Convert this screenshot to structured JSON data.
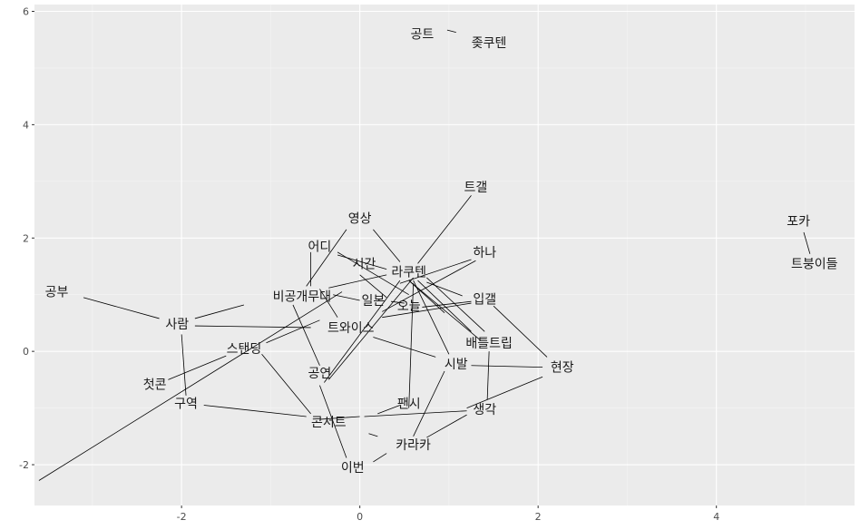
{
  "chart_data": {
    "type": "network",
    "title": "",
    "xlabel": "",
    "ylabel": "",
    "xlim": [
      -3.65,
      5.55
    ],
    "ylim": [
      -2.72,
      6.12
    ],
    "x_ticks": [
      -2,
      0,
      2,
      4
    ],
    "y_ticks": [
      -2,
      0,
      2,
      4,
      6
    ],
    "grid": true,
    "legend": "none",
    "nodes": [
      {
        "id": "gongteu",
        "label": "공트",
        "x": 0.7,
        "y": 5.6
      },
      {
        "id": "jotkuten",
        "label": "좆쿠텐",
        "x": 1.45,
        "y": 5.45
      },
      {
        "id": "teugael",
        "label": "트갤",
        "x": 1.3,
        "y": 2.9
      },
      {
        "id": "yeongsang",
        "label": "영상",
        "x": 0.0,
        "y": 2.35
      },
      {
        "id": "eodi",
        "label": "어디",
        "x": -0.45,
        "y": 1.85
      },
      {
        "id": "hana",
        "label": "하나",
        "x": 1.4,
        "y": 1.75
      },
      {
        "id": "sigan",
        "label": "시간",
        "x": 0.05,
        "y": 1.55
      },
      {
        "id": "rakuten",
        "label": "라쿠텐",
        "x": 0.55,
        "y": 1.4
      },
      {
        "id": "bigong",
        "label": "비공개무대",
        "x": -0.65,
        "y": 0.97
      },
      {
        "id": "ilbon",
        "label": "일본",
        "x": 0.15,
        "y": 0.9
      },
      {
        "id": "oneul",
        "label": "오늘",
        "x": 0.55,
        "y": 0.8
      },
      {
        "id": "ipgael",
        "label": "입갤",
        "x": 1.4,
        "y": 0.92
      },
      {
        "id": "gongbu",
        "label": "공부",
        "x": -3.4,
        "y": 1.05
      },
      {
        "id": "saram",
        "label": "사람",
        "x": -2.05,
        "y": 0.48
      },
      {
        "id": "twice",
        "label": "트와이스",
        "x": -0.1,
        "y": 0.42
      },
      {
        "id": "battle",
        "label": "배틀트립",
        "x": 1.45,
        "y": 0.15
      },
      {
        "id": "standing",
        "label": "스탠딩",
        "x": -1.3,
        "y": 0.05
      },
      {
        "id": "sibal",
        "label": "시발",
        "x": 1.08,
        "y": -0.22
      },
      {
        "id": "hyeonjang",
        "label": "현장",
        "x": 2.27,
        "y": -0.28
      },
      {
        "id": "gongyeon",
        "label": "공연",
        "x": -0.45,
        "y": -0.38
      },
      {
        "id": "cheotpan",
        "label": "첫콘",
        "x": -2.3,
        "y": -0.58
      },
      {
        "id": "fansi",
        "label": "팬시",
        "x": 0.55,
        "y": -0.92
      },
      {
        "id": "guyeok",
        "label": "구역",
        "x": -1.95,
        "y": -0.92
      },
      {
        "id": "saenggak",
        "label": "생각",
        "x": 1.4,
        "y": -1.02
      },
      {
        "id": "concert",
        "label": "콘서트",
        "x": -0.35,
        "y": -1.25
      },
      {
        "id": "karaka",
        "label": "카라카",
        "x": 0.6,
        "y": -1.65
      },
      {
        "id": "ibeon",
        "label": "이번",
        "x": -0.08,
        "y": -2.05
      },
      {
        "id": "poka",
        "label": "포카",
        "x": 4.92,
        "y": 2.3
      },
      {
        "id": "teubuni",
        "label": "트붕이들",
        "x": 5.1,
        "y": 1.55
      }
    ],
    "edges": [
      [
        0.98,
        5.67,
        1.08,
        5.63
      ],
      [
        -3.1,
        0.95,
        -2.25,
        0.58
      ],
      [
        -1.85,
        0.58,
        -1.3,
        0.82
      ],
      [
        -1.85,
        0.45,
        -0.55,
        0.42
      ],
      [
        -2.0,
        0.3,
        -1.95,
        -0.78
      ],
      [
        -2.15,
        -0.5,
        -1.5,
        -0.08
      ],
      [
        -3.6,
        -2.28,
        -0.2,
        1.05
      ],
      [
        -1.75,
        -0.95,
        -0.6,
        -1.15
      ],
      [
        -1.1,
        -0.05,
        -0.55,
        -1.1
      ],
      [
        -1.05,
        0.15,
        -0.45,
        0.55
      ],
      [
        -0.75,
        0.82,
        -0.45,
        -0.25
      ],
      [
        -0.6,
        1.15,
        -0.15,
        2.15
      ],
      [
        -0.55,
        1.75,
        -0.55,
        1.15
      ],
      [
        -0.45,
        1.1,
        -0.25,
        0.6
      ],
      [
        -0.3,
        1.0,
        0.0,
        0.9
      ],
      [
        -0.35,
        1.12,
        0.3,
        1.35
      ],
      [
        0.15,
        2.15,
        0.45,
        1.58
      ],
      [
        -0.25,
        1.75,
        0.55,
        1.0
      ],
      [
        -0.25,
        1.7,
        0.3,
        1.45
      ],
      [
        0.0,
        1.35,
        0.3,
        0.95
      ],
      [
        -0.4,
        -0.55,
        0.45,
        1.25
      ],
      [
        -0.35,
        -0.5,
        0.6,
        1.3
      ],
      [
        0.35,
        0.88,
        0.5,
        0.85
      ],
      [
        0.65,
        1.55,
        1.25,
        2.75
      ],
      [
        0.25,
        0.7,
        1.3,
        1.6
      ],
      [
        0.45,
        1.2,
        1.25,
        1.62
      ],
      [
        0.75,
        1.22,
        1.15,
        0.98
      ],
      [
        0.75,
        1.3,
        1.4,
        0.35
      ],
      [
        0.65,
        1.25,
        1.25,
        0.35
      ],
      [
        0.6,
        1.25,
        1.0,
        -0.05
      ],
      [
        0.55,
        1.25,
        0.95,
        0.68
      ],
      [
        0.6,
        1.2,
        0.55,
        -1.0
      ],
      [
        0.55,
        1.25,
        1.35,
        0.2
      ],
      [
        0.25,
        0.6,
        1.25,
        0.85
      ],
      [
        0.15,
        0.25,
        0.85,
        -0.1
      ],
      [
        0.7,
        0.78,
        1.25,
        0.88
      ],
      [
        1.5,
        0.8,
        2.1,
        -0.1
      ],
      [
        1.25,
        -0.25,
        2.05,
        -0.28
      ],
      [
        1.2,
        -1.0,
        2.05,
        -0.45
      ],
      [
        1.45,
        0.0,
        1.43,
        -0.85
      ],
      [
        0.95,
        -0.35,
        0.6,
        -1.5
      ],
      [
        1.2,
        -1.12,
        0.75,
        -1.52
      ],
      [
        0.2,
        -1.1,
        0.45,
        -0.95
      ],
      [
        0.05,
        -1.15,
        1.2,
        -1.05
      ],
      [
        -0.45,
        -1.2,
        0.0,
        -1.15
      ],
      [
        -0.45,
        -0.6,
        -0.15,
        -1.88
      ],
      [
        0.15,
        -1.95,
        0.3,
        -1.8
      ],
      [
        0.1,
        -1.45,
        0.2,
        -1.5
      ],
      [
        4.98,
        2.1,
        5.05,
        1.72
      ]
    ]
  }
}
